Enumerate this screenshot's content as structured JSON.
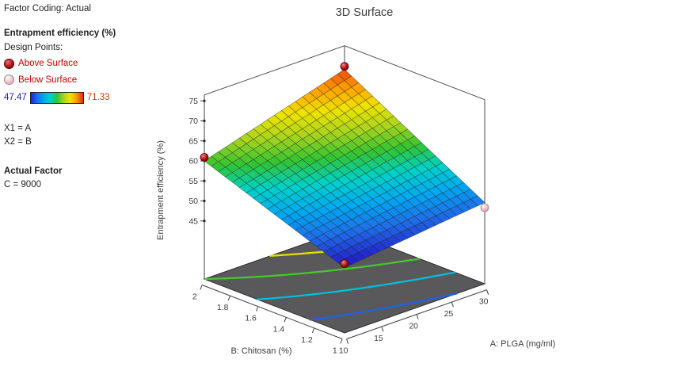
{
  "legend": {
    "factor_coding": "Factor Coding: Actual",
    "response": "Entrapment efficiency (%)",
    "design_points_label": "Design Points:",
    "above_surface": "Above Surface",
    "below_surface": "Below Surface",
    "x1": "X1 = A",
    "x2": "X2 = B",
    "actual_factor_label": "Actual Factor",
    "actual_factor_value": "C = 9000"
  },
  "chart_data": {
    "type": "surface",
    "title": "3D Surface",
    "axes": {
      "x": {
        "label": "A: PLGA (mg/ml)",
        "range": [
          10,
          30
        ],
        "ticks": [
          10,
          15,
          20,
          25,
          30
        ]
      },
      "y": {
        "label": "B: Chitosan (%)",
        "range": [
          1,
          2
        ],
        "ticks": [
          1,
          1.2,
          1.4,
          1.6,
          1.8,
          2
        ]
      },
      "z": {
        "label": "Entrapment efficiency (%)",
        "ticks": [
          45,
          50,
          55,
          60,
          65,
          70,
          75
        ]
      }
    },
    "surface": {
      "corners": {
        "A10_B1": 46.8,
        "A30_B1": 50.8,
        "A10_B2": 60.0,
        "A30_B2": 70.6
      },
      "grid": 20,
      "color_scale": {
        "min": 47.47,
        "max": 71.33
      }
    },
    "contour_levels": [
      50,
      55,
      60,
      65,
      70
    ],
    "colormap": [
      "#2323cc",
      "#1e6fe8",
      "#00aaf0",
      "#00d2c8",
      "#31c431",
      "#a8d41e",
      "#f0e400",
      "#ff9800",
      "#e42616"
    ],
    "design_points": [
      {
        "A": 10,
        "B": 1,
        "z": 47.8,
        "type": "above"
      },
      {
        "A": 10,
        "B": 2,
        "z": 60.9,
        "type": "above"
      },
      {
        "A": 30,
        "B": 2,
        "z": 71.33,
        "type": "above"
      },
      {
        "A": 30,
        "B": 1,
        "z": 49.5,
        "type": "below"
      }
    ]
  }
}
